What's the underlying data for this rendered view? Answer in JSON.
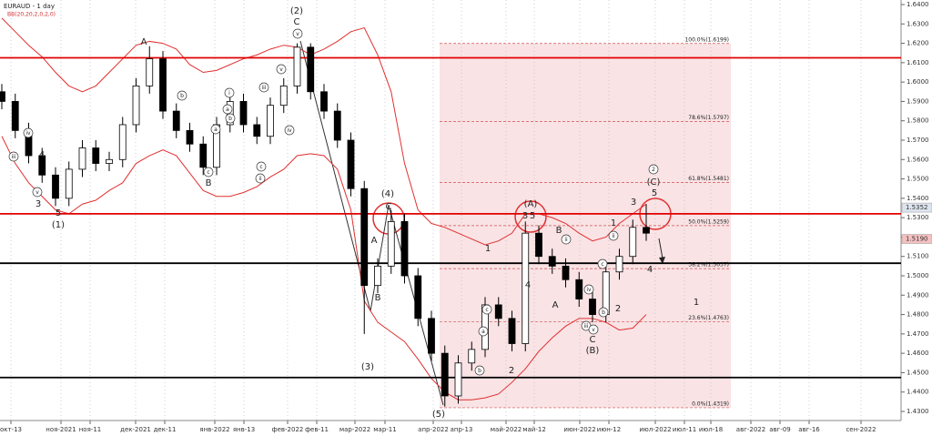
{
  "chart_data": {
    "type": "candlestick",
    "title": "EURAUD - 1 day",
    "subtitle": "BB(20,20,2,0,2,0)",
    "up_color": "#ffffff",
    "down_color": "#000000",
    "band_color": "#e03030",
    "grid": true,
    "open": [
      1.595,
      1.59,
      1.575,
      1.562,
      1.552,
      1.54,
      1.555,
      1.566,
      1.558,
      1.56,
      1.578,
      1.598,
      1.612,
      1.585,
      1.575,
      1.568,
      1.556,
      1.578,
      1.59,
      1.578,
      1.572,
      1.588,
      1.598,
      1.618,
      1.595,
      1.585,
      1.57,
      1.545,
      1.495,
      1.505,
      1.528,
      1.5,
      1.478,
      1.46,
      1.438,
      1.455,
      1.462,
      1.485,
      1.478,
      1.465,
      1.522,
      1.51,
      1.505,
      1.498,
      1.488,
      1.48,
      1.502,
      1.51,
      1.525
    ],
    "high": [
      1.599,
      1.594,
      1.579,
      1.566,
      1.556,
      1.559,
      1.57,
      1.57,
      1.564,
      1.582,
      1.602,
      1.6185,
      1.616,
      1.589,
      1.579,
      1.572,
      1.582,
      1.594,
      1.594,
      1.582,
      1.592,
      1.602,
      1.62,
      1.62,
      1.599,
      1.589,
      1.574,
      1.549,
      1.509,
      1.534,
      1.532,
      1.504,
      1.482,
      1.464,
      1.459,
      1.466,
      1.489,
      1.489,
      1.482,
      1.528,
      1.526,
      1.514,
      1.509,
      1.502,
      1.492,
      1.506,
      1.514,
      1.529,
      1.537
    ],
    "low": [
      1.586,
      1.571,
      1.558,
      1.548,
      1.536,
      1.536,
      1.551,
      1.554,
      1.554,
      1.556,
      1.574,
      1.594,
      1.581,
      1.571,
      1.564,
      1.552,
      1.552,
      1.574,
      1.574,
      1.568,
      1.568,
      1.584,
      1.594,
      1.591,
      1.581,
      1.566,
      1.541,
      1.47,
      1.491,
      1.501,
      1.496,
      1.474,
      1.456,
      1.4325,
      1.434,
      1.451,
      1.458,
      1.474,
      1.461,
      1.461,
      1.506,
      1.501,
      1.494,
      1.484,
      1.476,
      1.476,
      1.498,
      1.506,
      1.518
    ],
    "close": [
      1.59,
      1.575,
      1.562,
      1.552,
      1.54,
      1.555,
      1.566,
      1.558,
      1.56,
      1.578,
      1.598,
      1.612,
      1.585,
      1.575,
      1.568,
      1.556,
      1.578,
      1.59,
      1.578,
      1.572,
      1.588,
      1.598,
      1.618,
      1.595,
      1.585,
      1.57,
      1.545,
      1.495,
      1.505,
      1.528,
      1.5,
      1.478,
      1.46,
      1.438,
      1.455,
      1.462,
      1.485,
      1.478,
      1.465,
      1.522,
      1.51,
      1.505,
      1.498,
      1.488,
      1.48,
      1.502,
      1.51,
      1.525,
      1.522
    ],
    "bb_upper": [
      1.633,
      1.626,
      1.619,
      1.613,
      1.605,
      1.598,
      1.595,
      1.598,
      1.605,
      1.612,
      1.619,
      1.621,
      1.62,
      1.617,
      1.609,
      1.605,
      1.606,
      1.609,
      1.612,
      1.614,
      1.617,
      1.619,
      1.618,
      1.614,
      1.617,
      1.621,
      1.626,
      1.628,
      1.614,
      1.595,
      1.558,
      1.534,
      1.527,
      1.525,
      1.522,
      1.519,
      1.516,
      1.518,
      1.522,
      1.532,
      1.532,
      1.53,
      1.527,
      1.522,
      1.518,
      1.52,
      1.527,
      1.532,
      1.537
    ],
    "bb_lower": [
      1.572,
      1.558,
      1.548,
      1.541,
      1.534,
      1.532,
      1.537,
      1.539,
      1.544,
      1.548,
      1.558,
      1.562,
      1.565,
      1.562,
      1.553,
      1.544,
      1.541,
      1.541,
      1.543,
      1.546,
      1.551,
      1.555,
      1.562,
      1.563,
      1.562,
      1.555,
      1.534,
      1.487,
      1.476,
      1.471,
      1.466,
      1.457,
      1.447,
      1.44,
      1.436,
      1.436,
      1.437,
      1.439,
      1.445,
      1.452,
      1.461,
      1.468,
      1.474,
      1.478,
      1.478,
      1.476,
      1.472,
      1.473,
      1.48
    ],
    "ylim": [
      1.43,
      1.64
    ],
    "yticks": [
      {
        "value": 1.64,
        "label": "1.6400"
      },
      {
        "value": 1.63,
        "label": "1.6300"
      },
      {
        "value": 1.62,
        "label": "1.6200"
      },
      {
        "value": 1.61,
        "label": "1.6100"
      },
      {
        "value": 1.6,
        "label": "1.6000"
      },
      {
        "value": 1.59,
        "label": "1.5900"
      },
      {
        "value": 1.58,
        "label": "1.5800"
      },
      {
        "value": 1.57,
        "label": "1.5700"
      },
      {
        "value": 1.56,
        "label": "1.5600"
      },
      {
        "value": 1.55,
        "label": "1.5500"
      },
      {
        "value": 1.54,
        "label": "1.5400"
      },
      {
        "value": 1.53,
        "label": "1.5300"
      },
      {
        "value": 1.52,
        "label": "1.5200"
      },
      {
        "value": 1.51,
        "label": "1.5100"
      },
      {
        "value": 1.5,
        "label": "1.5000"
      },
      {
        "value": 1.49,
        "label": "1.4900"
      },
      {
        "value": 1.48,
        "label": "1.4800"
      },
      {
        "value": 1.47,
        "label": "1.4700"
      },
      {
        "value": 1.46,
        "label": "1.4600"
      },
      {
        "value": 1.45,
        "label": "1.4500"
      },
      {
        "value": 1.44,
        "label": "1.4400"
      },
      {
        "value": 1.43,
        "label": "1.4300"
      }
    ],
    "xticks": [
      "окт-13",
      "ноя-2021",
      "ноя-11",
      "дек-2021",
      "дек-11",
      "янв-2022",
      "янв-13",
      "фев-2022",
      "фев-11",
      "мар-2022",
      "мар-11",
      "апр-2022",
      "апр-13",
      "май-2022",
      "май-12",
      "июн-2022",
      "июн-12",
      "июл-2022",
      "июл-11",
      "июл-18",
      "авг-2022",
      "авг-09",
      "авг-16",
      "сен-2022"
    ],
    "hlines": [
      {
        "value": 1.6125,
        "color": "#e00000"
      },
      {
        "value": 1.532,
        "color": "#e00000"
      },
      {
        "value": 1.5065,
        "color": "#000000"
      },
      {
        "value": 1.4475,
        "color": "#000000"
      }
    ],
    "fib_levels": [
      {
        "value": 1.6199,
        "label": "100.0%(1.6199)"
      },
      {
        "value": 1.5797,
        "label": "78.6%(1.5797)"
      },
      {
        "value": 1.5481,
        "label": "61.8%(1.5481)"
      },
      {
        "value": 1.5259,
        "label": "50.0%(1.5259)"
      },
      {
        "value": 1.5037,
        "label": "38.2%(1.5037)"
      },
      {
        "value": 1.4763,
        "label": "23.6%(1.4763)"
      },
      {
        "value": 1.4319,
        "label": "0.0%(1.4319)"
      }
    ],
    "price_tags": [
      {
        "value": 1.5352,
        "label": "1.5352",
        "color": "#dde4ee"
      },
      {
        "value": 1.519,
        "label": "1.5190",
        "color": "#f4c0c0"
      }
    ],
    "wave_labels": [
      "(2)",
      "C",
      "A",
      "(1)",
      "5",
      "3",
      "4",
      "B",
      "(4)",
      "C",
      "A",
      "B",
      "(3)",
      "(5)",
      "1",
      "2",
      "(A)",
      "3",
      "5",
      "4",
      "B",
      "A",
      "C",
      "(B)",
      "1",
      "2",
      "3",
      "4",
      "5",
      "(C)",
      "1"
    ],
    "circled_labels": [
      "v",
      "iv",
      "iii",
      "v",
      "b",
      "a",
      "c",
      "i",
      "ii",
      "iii",
      "iv",
      "v",
      "a",
      "b",
      "c",
      "ii",
      "a",
      "b",
      "c",
      "iv",
      "iii",
      "v",
      "b",
      "c",
      "ii",
      "2"
    ]
  }
}
